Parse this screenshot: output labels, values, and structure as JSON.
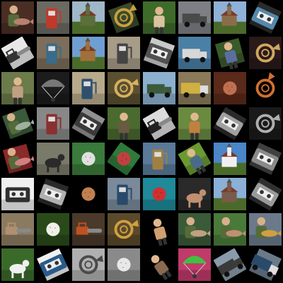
{
  "grid": {
    "rows": 8,
    "cols": 8,
    "background": "#000000",
    "tiles": [
      {
        "subject": "fish-held",
        "bg": "#4a2e24",
        "fg": "#b88070",
        "rot": 0
      },
      {
        "subject": "gas-pump",
        "bg": "#6b6a62",
        "fg": "#c0392b",
        "rot": 0
      },
      {
        "subject": "church",
        "bg": "#9fb7c9",
        "fg": "#5b6e3b",
        "rot": 0
      },
      {
        "subject": "french-horn",
        "bg": "#3b4a2a",
        "fg": "#c8a040",
        "rot": -20
      },
      {
        "subject": "person",
        "bg": "#3f6b2a",
        "fg": "#d9c3a0",
        "rot": 0
      },
      {
        "subject": "truck",
        "bg": "#7d7f85",
        "fg": "#4a4a4a",
        "rot": 0
      },
      {
        "subject": "church",
        "bg": "#8fb1d8",
        "fg": "#8a6d4a",
        "rot": 0
      },
      {
        "subject": "cassette-player",
        "bg": "#2b2b2b",
        "fg": "#5588aa",
        "rot": 25
      },
      {
        "subject": "chain-saw",
        "bg": "#e8e8e8",
        "fg": "#333333",
        "rot": -30
      },
      {
        "subject": "gas-pump",
        "bg": "#7c6e5a",
        "fg": "#3a6b8a",
        "rot": 0
      },
      {
        "subject": "church",
        "bg": "#6f9fd0",
        "fg": "#a0703a",
        "rot": 0
      },
      {
        "subject": "gas-pump",
        "bg": "#a79c88",
        "fg": "#444444",
        "rot": 0
      },
      {
        "subject": "cassette-player",
        "bg": "#c9c9c9",
        "fg": "#505050",
        "rot": 20
      },
      {
        "subject": "truck",
        "bg": "#4a7fa6",
        "fg": "#d8d8d8",
        "rot": 0
      },
      {
        "subject": "person",
        "bg": "#3b5a2b",
        "fg": "#5a6fa0",
        "rot": -15
      },
      {
        "subject": "french-horn",
        "bg": "#2a1a1a",
        "fg": "#d0a860",
        "rot": 0
      },
      {
        "subject": "person",
        "bg": "#6b7b4a",
        "fg": "#c0a080",
        "rot": 0
      },
      {
        "subject": "parachute",
        "bg": "#1c1c1c",
        "fg": "#777777",
        "rot": 0
      },
      {
        "subject": "gas-pump",
        "bg": "#b8a98a",
        "fg": "#2f4f6f",
        "rot": 0
      },
      {
        "subject": "french-horn",
        "bg": "#5a5030",
        "fg": "#d8b060",
        "rot": 0
      },
      {
        "subject": "truck",
        "bg": "#8cb0d0",
        "fg": "#3c5a3c",
        "rot": 0
      },
      {
        "subject": "garbage-truck",
        "bg": "#8a7a5a",
        "fg": "#d0b040",
        "rot": 0
      },
      {
        "subject": "golf-ball",
        "bg": "#5a2a1a",
        "fg": "#c07050",
        "rot": 0
      },
      {
        "subject": "french-horn",
        "bg": "#000000",
        "fg": "#d07030",
        "rot": -40
      },
      {
        "subject": "fish-held",
        "bg": "#3a5a3a",
        "fg": "#a0b0a0",
        "rot": -20
      },
      {
        "subject": "gas-pump",
        "bg": "#888888",
        "fg": "#8a3030",
        "rot": 0
      },
      {
        "subject": "cassette-player",
        "bg": "#909090",
        "fg": "#3a3a3a",
        "rot": 30
      },
      {
        "subject": "person",
        "bg": "#4a6a30",
        "fg": "#6a5a40",
        "rot": 0
      },
      {
        "subject": "chain-saw",
        "bg": "#dcdcdc",
        "fg": "#222222",
        "rot": -30
      },
      {
        "subject": "person",
        "bg": "#6a8a40",
        "fg": "#c08040",
        "rot": 0
      },
      {
        "subject": "cassette-player",
        "bg": "#2a2a2a",
        "fg": "#a0a0a0",
        "rot": 30
      },
      {
        "subject": "french-horn",
        "bg": "#1a1a1a",
        "fg": "#b0b0b0",
        "rot": 0
      },
      {
        "subject": "fish-held",
        "bg": "#8a2a2a",
        "fg": "#d08080",
        "rot": -15
      },
      {
        "subject": "dog",
        "bg": "#7a7a6a",
        "fg": "#2a2a2a",
        "rot": 0
      },
      {
        "subject": "golf-ball",
        "bg": "#3a7a3a",
        "fg": "#e0e0e0",
        "rot": 0
      },
      {
        "subject": "golf-ball",
        "bg": "#2f7a3a",
        "fg": "#c04040",
        "rot": 35
      },
      {
        "subject": "gas-pump",
        "bg": "#5a7a9a",
        "fg": "#a08040",
        "rot": 0
      },
      {
        "subject": "person",
        "bg": "#6a9a30",
        "fg": "#4a6a8a",
        "rot": -30
      },
      {
        "subject": "church",
        "bg": "#4a86c8",
        "fg": "#f0f0f0",
        "rot": 0
      },
      {
        "subject": "cassette-player",
        "bg": "#404040",
        "fg": "#8a8a8a",
        "rot": 25
      },
      {
        "subject": "cassette-player",
        "bg": "#f0f0f0",
        "fg": "#303030",
        "rot": 0
      },
      {
        "subject": "cassette-player",
        "bg": "#2a2a2a",
        "fg": "#b0b0b0",
        "rot": 20
      },
      {
        "subject": "golf-ball",
        "bg": "#000000",
        "fg": "#c08050",
        "rot": -15
      },
      {
        "subject": "gas-pump",
        "bg": "#7a8a9a",
        "fg": "#2a4a6a",
        "rot": 0
      },
      {
        "subject": "golf-ball",
        "bg": "#1e8a9a",
        "fg": "#d03030",
        "rot": 0
      },
      {
        "subject": "dog",
        "bg": "#2a2a2a",
        "fg": "#c09070",
        "rot": 0
      },
      {
        "subject": "church",
        "bg": "#8ab0d8",
        "fg": "#7a5a4a",
        "rot": 0
      },
      {
        "subject": "cassette-player",
        "bg": "#303030",
        "fg": "#9a9a9a",
        "rot": 30
      },
      {
        "subject": "chain-saw",
        "bg": "#8a7a60",
        "fg": "#b09070",
        "rot": 0
      },
      {
        "subject": "golf-ball",
        "bg": "#2a4a1a",
        "fg": "#f0efe8",
        "rot": 0
      },
      {
        "subject": "chain-saw",
        "bg": "#4a3a2a",
        "fg": "#c05020",
        "rot": 0
      },
      {
        "subject": "french-horn",
        "bg": "#5a4a2a",
        "fg": "#d0a040",
        "rot": 0
      },
      {
        "subject": "person",
        "bg": "#000000",
        "fg": "#d0a070",
        "rot": -15
      },
      {
        "subject": "fish-held",
        "bg": "#3a5a3a",
        "fg": "#c0a080",
        "rot": 0
      },
      {
        "subject": "fish-held",
        "bg": "#4a7a3a",
        "fg": "#c09070",
        "rot": 0
      },
      {
        "subject": "fish-held",
        "bg": "#6a7a8a",
        "fg": "#d0a040",
        "rot": 0
      },
      {
        "subject": "dog",
        "bg": "#3a6a2a",
        "fg": "#f0f0f0",
        "rot": 0
      },
      {
        "subject": "cassette-player",
        "bg": "#f0f0f0",
        "fg": "#2a5a8a",
        "rot": -25
      },
      {
        "subject": "french-horn",
        "bg": "#b0b0b0",
        "fg": "#4a4a4a",
        "rot": 0
      },
      {
        "subject": "golf-ball",
        "bg": "#8a8a8a",
        "fg": "#e8e8e8",
        "rot": 0
      },
      {
        "subject": "person",
        "bg": "#000000",
        "fg": "#8a6a50",
        "rot": -35
      },
      {
        "subject": "parachute",
        "bg": "#c03a6a",
        "fg": "#40c040",
        "rot": 0
      },
      {
        "subject": "truck",
        "bg": "#8a9aaa",
        "fg": "#3a3a3a",
        "rot": -30
      },
      {
        "subject": "garbage-truck",
        "bg": "#6a7a8a",
        "fg": "#2a4a6a",
        "rot": 25
      }
    ]
  }
}
